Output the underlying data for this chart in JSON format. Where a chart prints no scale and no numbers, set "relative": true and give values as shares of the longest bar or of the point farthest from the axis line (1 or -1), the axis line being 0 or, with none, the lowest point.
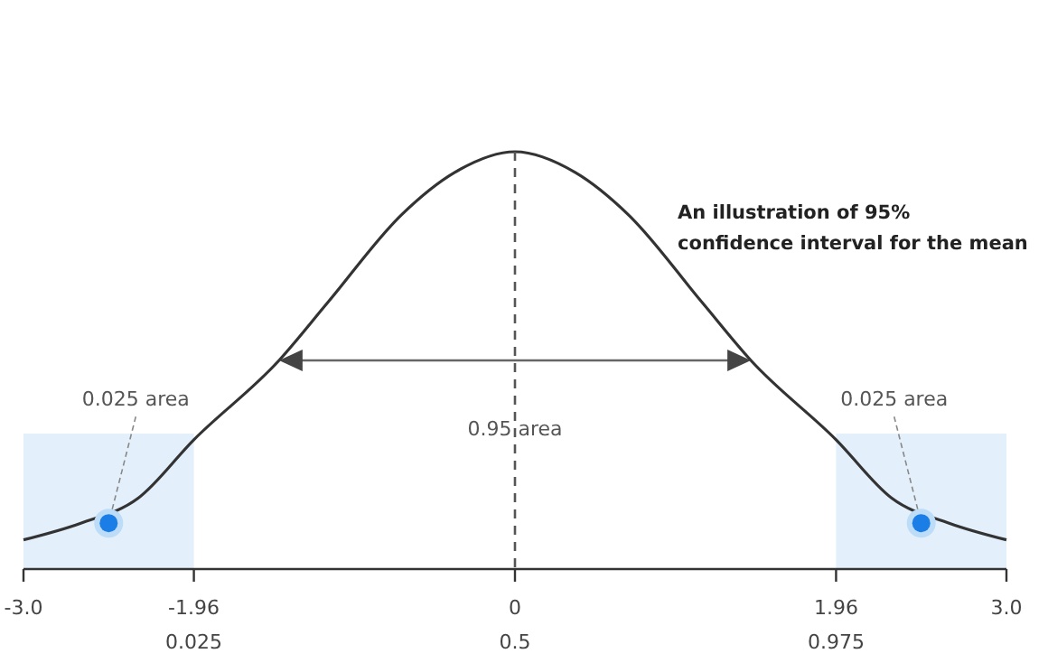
{
  "chart_data": {
    "type": "line",
    "title": "An illustration of 95% confidence interval for the mean",
    "relative": true,
    "x": [
      -3,
      -2.65,
      -2.3,
      -1.96,
      -1.44,
      -1.14,
      -0.69,
      -0.37,
      0,
      0.37,
      0.69,
      1.14,
      1.44,
      1.96,
      2.3,
      2.65,
      3
    ],
    "series": [
      {
        "color": "#333333",
        "values": [
          0.07,
          0.11,
          0.17,
          0.31,
          0.5,
          0.64,
          0.85,
          0.95,
          1,
          0.95,
          0.85,
          0.64,
          0.5,
          0.31,
          0.17,
          0.11,
          0.07
        ]
      }
    ],
    "xlim": [
      -3,
      3
    ],
    "xticks": [
      {
        "value": -3,
        "label": "-3.0"
      },
      {
        "value": -1.96,
        "label": "-1.96\n0.025"
      },
      {
        "value": 0,
        "label": "0\n0.5"
      },
      {
        "value": 1.96,
        "label": "1.96\n0.975"
      },
      {
        "value": 3,
        "label": "3.0"
      }
    ],
    "tick_labels": "x",
    "grid": false,
    "legend": false,
    "marker": "none",
    "line_style": "solid",
    "bands": [
      {
        "axis": "x",
        "from": -3,
        "to": -1.96,
        "color": "#e3f0fb"
      },
      {
        "axis": "x",
        "from": 1.96,
        "to": 3,
        "color": "#e3f0fb"
      }
    ],
    "ref_lines": [
      {
        "axis": "x",
        "value": 0,
        "color": "#555555",
        "line_style": "dashed"
      }
    ],
    "annotations": [
      "0.025 area",
      "0.95 area",
      "0.025 area"
    ]
  }
}
